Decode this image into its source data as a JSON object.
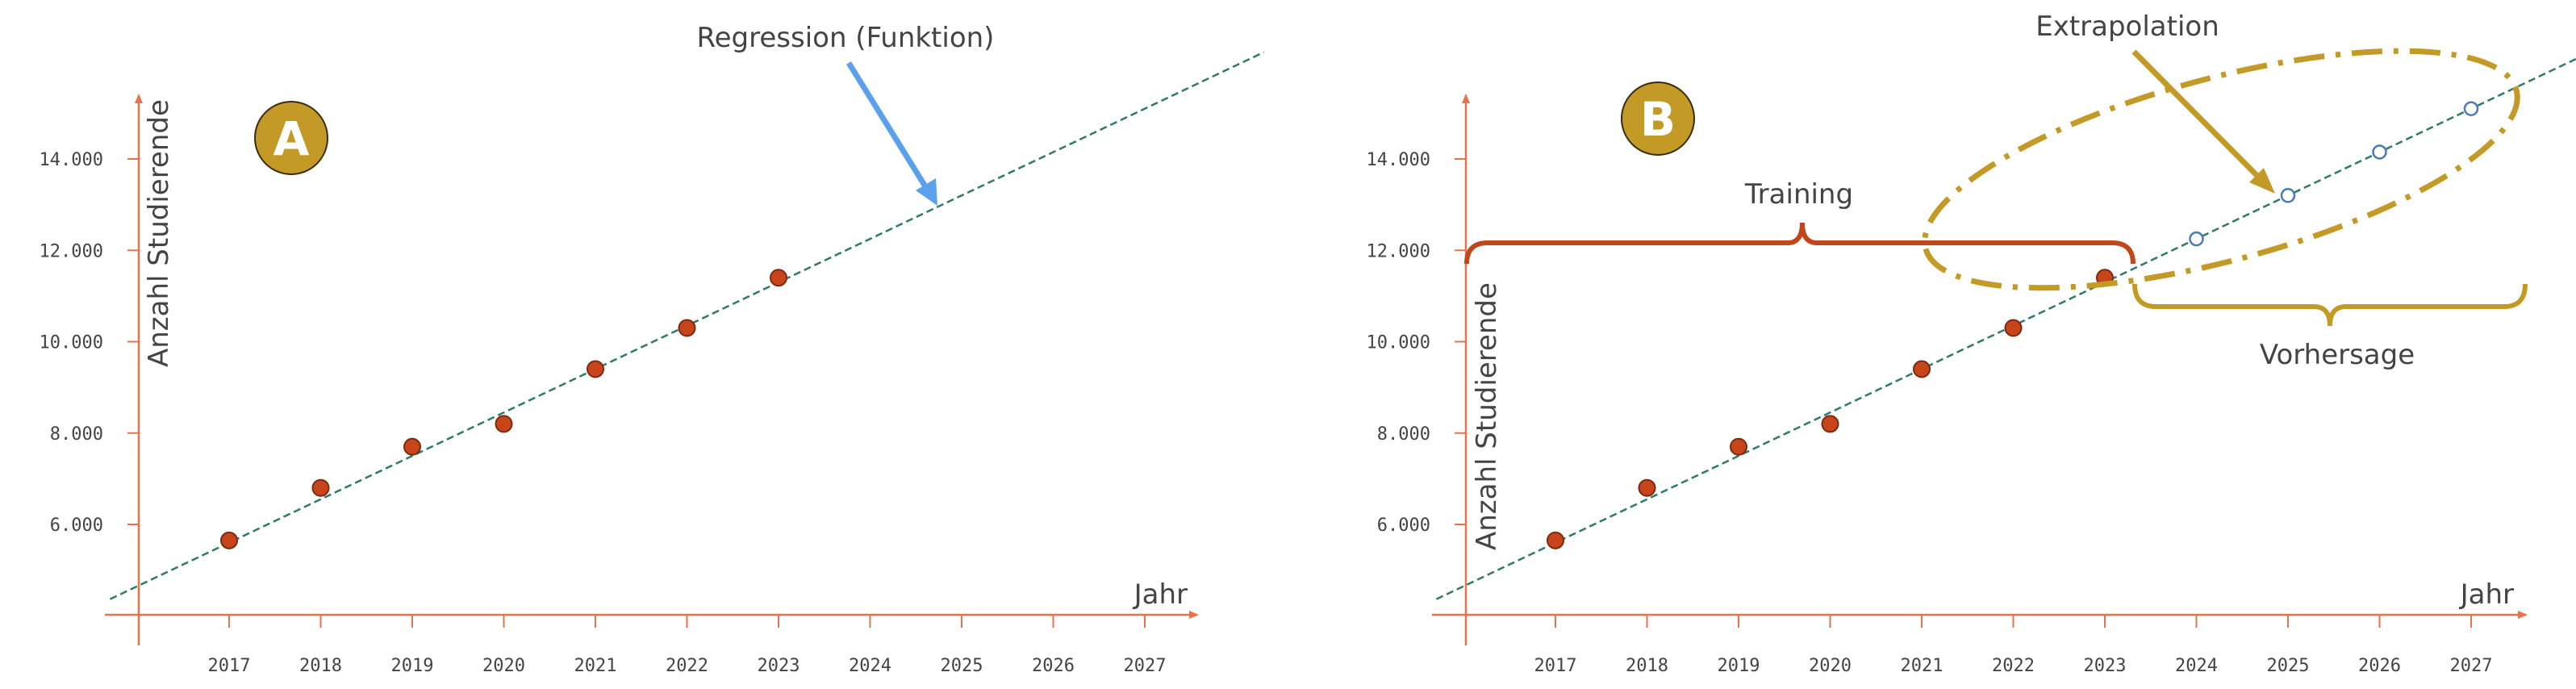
{
  "chart_data": [
    {
      "type": "scatter",
      "panel_label": "A",
      "xlabel": "Jahr",
      "ylabel": "Anzahl Studierende",
      "x_ticks": [
        "2017",
        "2018",
        "2019",
        "2020",
        "2021",
        "2022",
        "2023",
        "2024",
        "2025",
        "2026",
        "2027"
      ],
      "y_ticks": [
        "6.000",
        "8.000",
        "10.000",
        "12.000",
        "14.000"
      ],
      "xlim": [
        2016.2,
        2027.8
      ],
      "ylim": [
        4000,
        15500
      ],
      "points": {
        "x": [
          2017,
          2018,
          2019,
          2020,
          2021,
          2022,
          2023
        ],
        "y": [
          5650,
          6800,
          7700,
          8200,
          9400,
          10300,
          11400
        ]
      },
      "regression": {
        "x_from": 2015.7,
        "x_to": 2028.3,
        "slope": 950,
        "intercept_at_2017": 5600
      },
      "annotations": [
        {
          "text": "Regression (Funktion)",
          "arrow_to_x": 2024.8
        }
      ]
    },
    {
      "type": "scatter",
      "panel_label": "B",
      "xlabel": "Jahr",
      "ylabel": "Anzahl Studierende",
      "x_ticks": [
        "2017",
        "2018",
        "2019",
        "2020",
        "2021",
        "2022",
        "2023",
        "2024",
        "2025",
        "2026",
        "2027"
      ],
      "y_ticks": [
        "6.000",
        "8.000",
        "10.000",
        "12.000",
        "14.000"
      ],
      "xlim": [
        2016.2,
        2027.8
      ],
      "ylim": [
        4000,
        15500
      ],
      "points": {
        "x": [
          2017,
          2018,
          2019,
          2020,
          2021,
          2022,
          2023
        ],
        "y": [
          5650,
          6800,
          7700,
          8200,
          9400,
          10300,
          11400
        ]
      },
      "forecast": {
        "x": [
          2024,
          2025,
          2026,
          2027
        ],
        "y": [
          12250,
          13200,
          14150,
          15100
        ]
      },
      "regression": {
        "x_from": 2015.7,
        "x_to": 2028.3,
        "slope": 950,
        "intercept_at_2017": 5600
      },
      "annotations": [
        {
          "text": "Training"
        },
        {
          "text": "Extrapolation"
        },
        {
          "text": "Vorhersage"
        }
      ]
    }
  ],
  "colors": {
    "axis": "#e8734a",
    "point": "#c8441b",
    "point_stroke": "#7a2a10",
    "line": "#2f7a6a",
    "forecast": "#4a7ab8",
    "badge": "#c49a26",
    "badge_stroke": "#3a2a08",
    "arrow_blue": "#5aa0ec",
    "gold": "#c49a26",
    "brace_red": "#c0461c",
    "text": "#444444"
  }
}
